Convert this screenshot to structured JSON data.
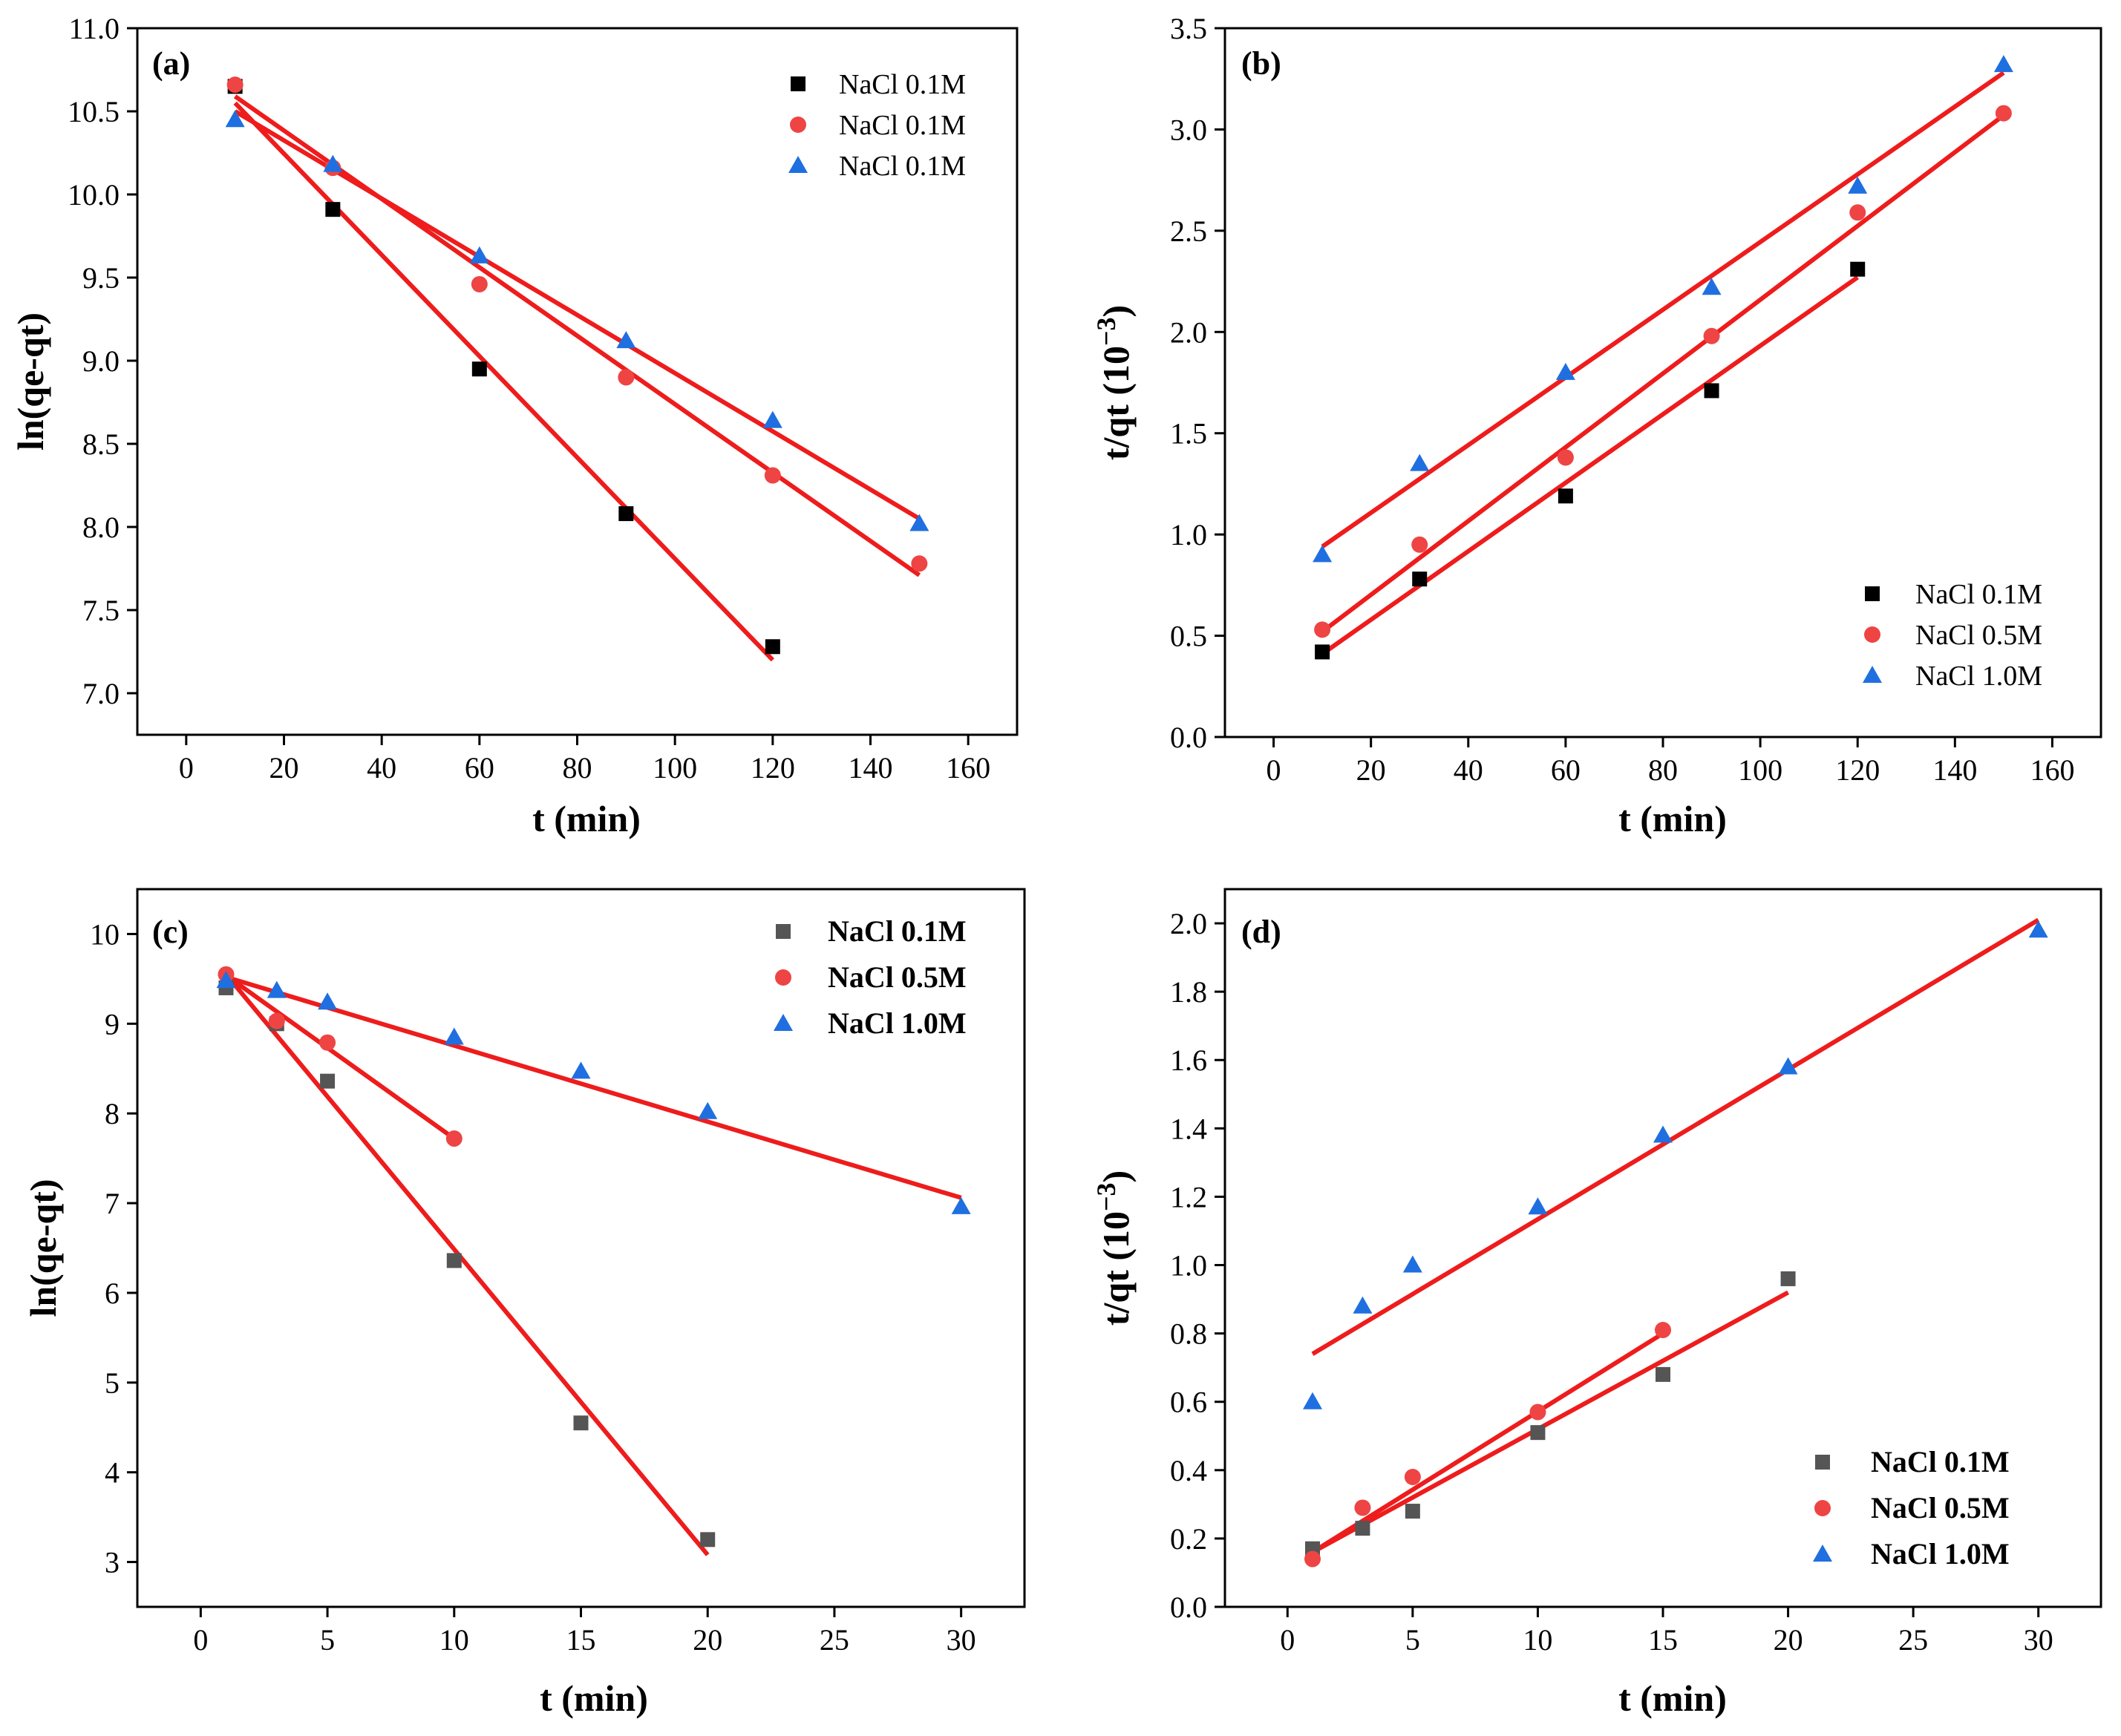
{
  "colors": {
    "fit": "#ee1c1c",
    "series": [
      "#000000",
      "#ee4444",
      "#1f6fe0"
    ],
    "series_c": [
      "#555555",
      "#ee4444",
      "#1f6fe0"
    ],
    "series_d": [
      "#555555",
      "#ee4444",
      "#1f6fe0"
    ]
  },
  "chart_data": [
    {
      "id": "a",
      "panel_label": "(a)",
      "type": "scatter",
      "xlabel": "t (min)",
      "ylabel": "ln(qe-qt)",
      "xlim": [
        -10,
        170
      ],
      "ylim": [
        6.75,
        11.0
      ],
      "xticks": [
        0,
        20,
        40,
        60,
        80,
        100,
        120,
        140,
        160
      ],
      "yticks": [
        7.0,
        7.5,
        8.0,
        8.5,
        9.0,
        9.5,
        10.0,
        10.5,
        11.0
      ],
      "ytick_labels": [
        "7.0",
        "7.5",
        "8.0",
        "8.5",
        "9.0",
        "9.5",
        "10.0",
        "10.5",
        "11.0"
      ],
      "legend_position": "top-right",
      "legend_bold": false,
      "series": [
        {
          "name": "NaCl 0.1M",
          "marker": "square",
          "x": [
            10,
            30,
            60,
            90,
            120
          ],
          "y": [
            10.65,
            9.91,
            8.95,
            8.08,
            7.28
          ],
          "fit": [
            [
              10,
              10.55
            ],
            [
              120,
              7.2
            ]
          ]
        },
        {
          "name": "NaCl 0.1M",
          "marker": "circle",
          "x": [
            10,
            30,
            60,
            90,
            120,
            150
          ],
          "y": [
            10.66,
            10.16,
            9.46,
            8.9,
            8.31,
            7.78
          ],
          "fit": [
            [
              10,
              10.59
            ],
            [
              150,
              7.71
            ]
          ]
        },
        {
          "name": "NaCl 0.1M",
          "marker": "triangle",
          "x": [
            10,
            30,
            60,
            90,
            120,
            150
          ],
          "y": [
            10.45,
            10.18,
            9.63,
            9.12,
            8.64,
            8.02
          ],
          "fit": [
            [
              10,
              10.5
            ],
            [
              150,
              8.05
            ]
          ]
        }
      ]
    },
    {
      "id": "b",
      "panel_label": "(b)",
      "type": "scatter",
      "xlabel": "t (min)",
      "ylabel": "t/qt (10",
      "ylabel_exp": "−3",
      "ylabel_end": ")",
      "xlim": [
        -10,
        170
      ],
      "ylim": [
        0.0,
        3.5
      ],
      "xticks": [
        0,
        20,
        40,
        60,
        80,
        100,
        120,
        140,
        160
      ],
      "yticks": [
        0.0,
        0.5,
        1.0,
        1.5,
        2.0,
        2.5,
        3.0,
        3.5
      ],
      "ytick_labels": [
        "0.0",
        "0.5",
        "1.0",
        "1.5",
        "2.0",
        "2.5",
        "3.0",
        "3.5"
      ],
      "legend_position": "bottom-right",
      "legend_bold": false,
      "series": [
        {
          "name": "NaCl 0.1M",
          "marker": "square",
          "x": [
            10,
            30,
            60,
            90,
            120
          ],
          "y": [
            0.42,
            0.78,
            1.19,
            1.71,
            2.31
          ],
          "fit": [
            [
              10,
              0.41
            ],
            [
              120,
              2.27
            ]
          ]
        },
        {
          "name": "NaCl 0.5M",
          "marker": "circle",
          "x": [
            10,
            30,
            60,
            90,
            120,
            150
          ],
          "y": [
            0.53,
            0.95,
            1.38,
            1.98,
            2.59,
            3.08
          ],
          "fit": [
            [
              10,
              0.52
            ],
            [
              150,
              3.07
            ]
          ]
        },
        {
          "name": "NaCl 1.0M",
          "marker": "triangle",
          "x": [
            10,
            30,
            60,
            90,
            120,
            150
          ],
          "y": [
            0.9,
            1.35,
            1.8,
            2.22,
            2.72,
            3.32
          ],
          "fit": [
            [
              10,
              0.94
            ],
            [
              150,
              3.28
            ]
          ]
        }
      ]
    },
    {
      "id": "c",
      "panel_label": "(c)",
      "type": "scatter",
      "xlabel": "t (min)",
      "ylabel": "ln(qe-qt)",
      "xlim": [
        -2.5,
        32.5
      ],
      "ylim": [
        2.5,
        10.5
      ],
      "xticks": [
        0,
        5,
        10,
        15,
        20,
        25,
        30
      ],
      "yticks": [
        3,
        4,
        5,
        6,
        7,
        8,
        9,
        10
      ],
      "ytick_labels": [
        "3",
        "4",
        "5",
        "6",
        "7",
        "8",
        "9",
        "10"
      ],
      "legend_position": "top-right",
      "legend_bold": true,
      "series": [
        {
          "name": "NaCl 0.1M",
          "marker": "square",
          "x": [
            1,
            3,
            5,
            10,
            15,
            20
          ],
          "y": [
            9.4,
            9.0,
            8.36,
            6.36,
            4.55,
            3.25
          ],
          "fit": [
            [
              1,
              9.55
            ],
            [
              20,
              3.08
            ]
          ]
        },
        {
          "name": "NaCl 0.5M",
          "marker": "circle",
          "x": [
            1,
            3,
            5,
            10
          ],
          "y": [
            9.55,
            9.03,
            8.79,
            7.72
          ],
          "fit": [
            [
              1,
              9.54
            ],
            [
              10,
              7.72
            ]
          ]
        },
        {
          "name": "NaCl 1.0M",
          "marker": "triangle",
          "x": [
            1,
            3,
            5,
            10,
            15,
            20,
            30
          ],
          "y": [
            9.48,
            9.37,
            9.24,
            8.85,
            8.47,
            8.02,
            6.96
          ],
          "fit": [
            [
              1,
              9.52
            ],
            [
              30,
              7.06
            ]
          ]
        }
      ]
    },
    {
      "id": "d",
      "panel_label": "(d)",
      "type": "scatter",
      "xlabel": "t (min)",
      "ylabel": "t/qt (10",
      "ylabel_exp": "−3",
      "ylabel_end": ")",
      "xlim": [
        -2.5,
        32.5
      ],
      "ylim": [
        0.0,
        2.1
      ],
      "xticks": [
        0,
        5,
        10,
        15,
        20,
        25,
        30
      ],
      "yticks": [
        0.0,
        0.2,
        0.4,
        0.6,
        0.8,
        1.0,
        1.2,
        1.4,
        1.6,
        1.8,
        2.0
      ],
      "ytick_labels": [
        "0.0",
        "0.2",
        "0.4",
        "0.6",
        "0.8",
        "1.0",
        "1.2",
        "1.4",
        "1.6",
        "1.8",
        "2.0"
      ],
      "legend_position": "bottom-right",
      "legend_bold": true,
      "series": [
        {
          "name": "NaCl 0.1M",
          "marker": "square",
          "x": [
            1,
            3,
            5,
            10,
            15,
            20
          ],
          "y": [
            0.17,
            0.23,
            0.28,
            0.51,
            0.68,
            0.96
          ],
          "fit": [
            [
              1,
              0.16
            ],
            [
              20,
              0.92
            ]
          ]
        },
        {
          "name": "NaCl 0.5M",
          "marker": "circle",
          "x": [
            1,
            3,
            5,
            10,
            15
          ],
          "y": [
            0.14,
            0.29,
            0.38,
            0.57,
            0.81
          ],
          "fit": [
            [
              1,
              0.16
            ],
            [
              15,
              0.8
            ]
          ]
        },
        {
          "name": "NaCl 1.0M",
          "marker": "triangle",
          "x": [
            1,
            3,
            5,
            10,
            15,
            20,
            30
          ],
          "y": [
            0.6,
            0.88,
            1.0,
            1.17,
            1.38,
            1.58,
            1.98
          ],
          "fit": [
            [
              1,
              0.74
            ],
            [
              30,
              2.01
            ]
          ]
        }
      ]
    }
  ]
}
